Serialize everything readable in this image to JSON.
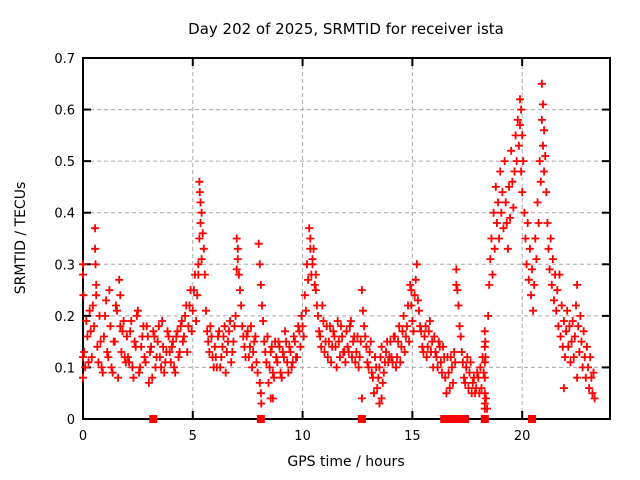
{
  "title": "Day 202 of 2025, SRMTID for receiver ista",
  "colors": {
    "marker": "#ff0000",
    "grid": "#a8a8a8",
    "border": "#000000",
    "background": "#ffffff"
  },
  "chart_data": {
    "type": "scatter",
    "title": "Day 202 of 2025, SRMTID for receiver ista",
    "xlabel": "GPS time / hours",
    "ylabel": "SRMTID / TECUs",
    "xlim": [
      0,
      24
    ],
    "ylim": [
      0,
      0.7
    ],
    "xticks": [
      {
        "v": 0,
        "label": "0"
      },
      {
        "v": 5,
        "label": "5"
      },
      {
        "v": 10,
        "label": "10"
      },
      {
        "v": 15,
        "label": "15"
      },
      {
        "v": 20,
        "label": "20"
      }
    ],
    "yticks": [
      {
        "v": 0,
        "label": "0"
      },
      {
        "v": 0.1,
        "label": "0.1"
      },
      {
        "v": 0.2,
        "label": "0.2"
      },
      {
        "v": 0.3,
        "label": "0.3"
      },
      {
        "v": 0.4,
        "label": "0.4"
      },
      {
        "v": 0.5,
        "label": "0.5"
      },
      {
        "v": 0.6,
        "label": "0.6"
      },
      {
        "v": 0.7,
        "label": "0.7"
      }
    ],
    "grid": true,
    "legend": "none",
    "marker": "plus",
    "series": [
      {
        "name": "srmtid-sample-a",
        "t0": 0.0,
        "dt": 0.1,
        "values": [
          0.28,
          0.1,
          0.16,
          0.21,
          0.12,
          0.18,
          0.24,
          0.11,
          0.15,
          0.09,
          0.2,
          0.13,
          0.25,
          0.1,
          0.15,
          0.22,
          0.08,
          0.18,
          0.17,
          0.12,
          0.16,
          0.11,
          0.19,
          0.08,
          0.14,
          0.21,
          0.1,
          0.16,
          0.12,
          0.18,
          0.07,
          0.14,
          0.17,
          0.1,
          0.15,
          0.12,
          0.19,
          0.09,
          0.13,
          0.16,
          0.11,
          0.15,
          0.09,
          0.17,
          0.13,
          0.19,
          0.16,
          0.22,
          0.18,
          0.25,
          0.21,
          0.28,
          0.24,
          0.46,
          0.4,
          0.33,
          0.21,
          0.15,
          0.18,
          0.12,
          0.14,
          0.1,
          0.17,
          0.12,
          0.16,
          0.09,
          0.15,
          0.19,
          0.13,
          0.18,
          0.35,
          0.28,
          0.22,
          0.16,
          0.12,
          0.17,
          0.14,
          0.1,
          0.15,
          0.11,
          0.34,
          0.26,
          0.19,
          0.13,
          0.16,
          0.1,
          0.14,
          0.08,
          0.12,
          0.15,
          0.09,
          0.13,
          0.17,
          0.11,
          0.14,
          0.1,
          0.16,
          0.12,
          0.18,
          0.14,
          0.18,
          0.24,
          0.3,
          0.37,
          0.28,
          0.33,
          0.25,
          0.2,
          0.16,
          0.22,
          0.13,
          0.18,
          0.15,
          0.11,
          0.17,
          0.14,
          0.19,
          0.12,
          0.16,
          0.13,
          0.17,
          0.13,
          0.19,
          0.15,
          0.11,
          0.16,
          0.12,
          0.25,
          0.18,
          0.14,
          0.1,
          0.15,
          0.08,
          0.12,
          0.06,
          0.1,
          0.14,
          0.09,
          0.13,
          0.11,
          0.15,
          0.11,
          0.16,
          0.12,
          0.18,
          0.14,
          0.2,
          0.16,
          0.22,
          0.26,
          0.19,
          0.24,
          0.3,
          0.21,
          0.17,
          0.13,
          0.18,
          0.14,
          0.19,
          0.15,
          0.16,
          0.12,
          0.15,
          0.11,
          0.14,
          0.08,
          0.12,
          0.06,
          0.1,
          0.13,
          0.29,
          0.22,
          0.16,
          0.11,
          0.07,
          0.12,
          0.09,
          0.05,
          0.08,
          0.06
        ]
      },
      {
        "name": "srmtid-sample-b",
        "t0": 0.05,
        "dt": 0.1,
        "values": [
          0.13,
          0.19,
          0.11,
          0.17,
          0.22,
          0.37,
          0.14,
          0.2,
          0.1,
          0.16,
          0.23,
          0.12,
          0.18,
          0.09,
          0.15,
          0.21,
          0.27,
          0.13,
          0.19,
          0.11,
          0.12,
          0.17,
          0.1,
          0.15,
          0.2,
          0.09,
          0.14,
          0.18,
          0.11,
          0.16,
          0.13,
          0.08,
          0.16,
          0.12,
          0.18,
          0.1,
          0.14,
          0.11,
          0.17,
          0.13,
          0.14,
          0.1,
          0.16,
          0.12,
          0.18,
          0.15,
          0.2,
          0.13,
          0.22,
          0.17,
          0.25,
          0.19,
          0.3,
          0.42,
          0.36,
          0.28,
          0.17,
          0.13,
          0.16,
          0.1,
          0.12,
          0.16,
          0.1,
          0.14,
          0.18,
          0.13,
          0.17,
          0.11,
          0.15,
          0.2,
          0.31,
          0.25,
          0.18,
          0.14,
          0.16,
          0.12,
          0.18,
          0.13,
          0.16,
          0.09,
          0.3,
          0.22,
          0.15,
          0.11,
          0.07,
          0.13,
          0.09,
          0.15,
          0.11,
          0.14,
          0.08,
          0.12,
          0.15,
          0.09,
          0.13,
          0.11,
          0.15,
          0.12,
          0.17,
          0.2,
          0.16,
          0.21,
          0.27,
          0.33,
          0.31,
          0.26,
          0.22,
          0.17,
          0.14,
          0.19,
          0.15,
          0.12,
          0.18,
          0.14,
          0.16,
          0.1,
          0.15,
          0.18,
          0.13,
          0.11,
          0.14,
          0.18,
          0.12,
          0.16,
          0.13,
          0.1,
          0.15,
          0.21,
          0.16,
          0.11,
          0.13,
          0.09,
          0.05,
          0.1,
          0.08,
          0.12,
          0.07,
          0.11,
          0.15,
          0.12,
          0.12,
          0.16,
          0.1,
          0.15,
          0.11,
          0.17,
          0.13,
          0.18,
          0.15,
          0.22,
          0.17,
          0.27,
          0.23,
          0.18,
          0.14,
          0.16,
          0.12,
          0.17,
          0.13,
          0.1,
          0.13,
          0.1,
          0.14,
          0.09,
          0.12,
          0.05,
          0.09,
          0.12,
          0.07,
          0.11,
          0.25,
          0.18,
          0.13,
          0.08,
          0.1,
          0.06,
          0.11,
          0.07,
          0.05,
          0.09
        ]
      },
      {
        "name": "srmtid-sample-evening",
        "t0": 18.0,
        "dt": 0.05,
        "values": [
          0.08,
          0.05,
          0.1,
          0.06,
          0.12,
          0.09,
          0.03,
          0.04,
          0.02,
          0.2,
          0.26,
          0.31,
          0.35,
          0.28,
          0.4,
          0.33,
          0.45,
          0.38,
          0.42,
          0.35,
          0.48,
          0.4,
          0.44,
          0.37,
          0.5,
          0.42,
          0.38,
          0.33,
          0.45,
          0.39,
          0.52,
          0.46,
          0.41,
          0.48,
          0.55,
          0.5,
          0.58,
          0.53,
          0.62,
          0.6,
          0.55,
          0.5,
          0.4,
          0.35,
          0.3,
          0.38,
          0.27,
          0.33,
          0.24,
          0.29,
          0.21,
          0.26,
          0.35,
          0.31,
          0.42,
          0.38,
          0.5,
          0.46,
          0.65,
          0.61,
          0.56,
          0.51,
          0.44,
          0.38,
          0.33,
          0.29,
          0.35,
          0.26,
          0.31,
          0.23,
          0.28,
          0.21,
          0.25,
          0.18,
          0.28,
          0.16,
          0.22,
          0.14,
          0.19,
          0.12,
          0.17,
          0.21,
          0.14,
          0.18,
          0.11,
          0.15,
          0.19,
          0.12,
          0.16,
          0.22,
          0.26,
          0.18,
          0.13,
          0.2,
          0.15,
          0.1,
          0.17,
          0.12,
          0.08,
          0.14,
          0.1,
          0.06,
          0.12,
          0.08,
          0.05,
          0.09,
          0.04
        ]
      }
    ],
    "extra_points": [
      [
        0.0,
        0.3
      ],
      [
        0.0,
        0.12
      ],
      [
        0.0,
        0.08
      ],
      [
        0.02,
        0.24
      ],
      [
        0.55,
        0.33
      ],
      [
        0.57,
        0.3
      ],
      [
        0.6,
        0.26
      ],
      [
        1.7,
        0.24
      ],
      [
        5.25,
        0.28
      ],
      [
        5.3,
        0.35
      ],
      [
        5.32,
        0.44
      ],
      [
        5.35,
        0.38
      ],
      [
        5.4,
        0.31
      ],
      [
        7.0,
        0.29
      ],
      [
        7.05,
        0.33
      ],
      [
        8.05,
        0.07
      ],
      [
        8.1,
        0.05
      ],
      [
        8.12,
        0.03
      ],
      [
        8.55,
        0.04
      ],
      [
        8.65,
        0.04
      ],
      [
        10.35,
        0.35
      ],
      [
        10.45,
        0.3
      ],
      [
        10.6,
        0.28
      ],
      [
        12.7,
        0.04
      ],
      [
        13.5,
        0.03
      ],
      [
        13.6,
        0.04
      ],
      [
        14.95,
        0.25
      ],
      [
        17.0,
        0.26
      ],
      [
        18.3,
        0.17
      ],
      [
        18.3,
        0.14
      ],
      [
        18.3,
        0.11
      ],
      [
        18.3,
        0.08
      ],
      [
        18.3,
        0.05
      ],
      [
        18.3,
        0.02
      ],
      [
        18.32,
        0.15
      ],
      [
        18.33,
        0.12
      ],
      [
        19.9,
        0.57
      ],
      [
        19.95,
        0.48
      ],
      [
        20.0,
        0.44
      ],
      [
        20.9,
        0.58
      ],
      [
        20.95,
        0.53
      ],
      [
        21.0,
        0.48
      ],
      [
        21.9,
        0.06
      ],
      [
        22.5,
        0.08
      ]
    ],
    "zero_value_times": [
      3.2,
      8.1,
      12.7,
      16.45,
      16.6,
      16.75,
      17.05,
      17.4,
      18.3,
      20.45
    ]
  }
}
